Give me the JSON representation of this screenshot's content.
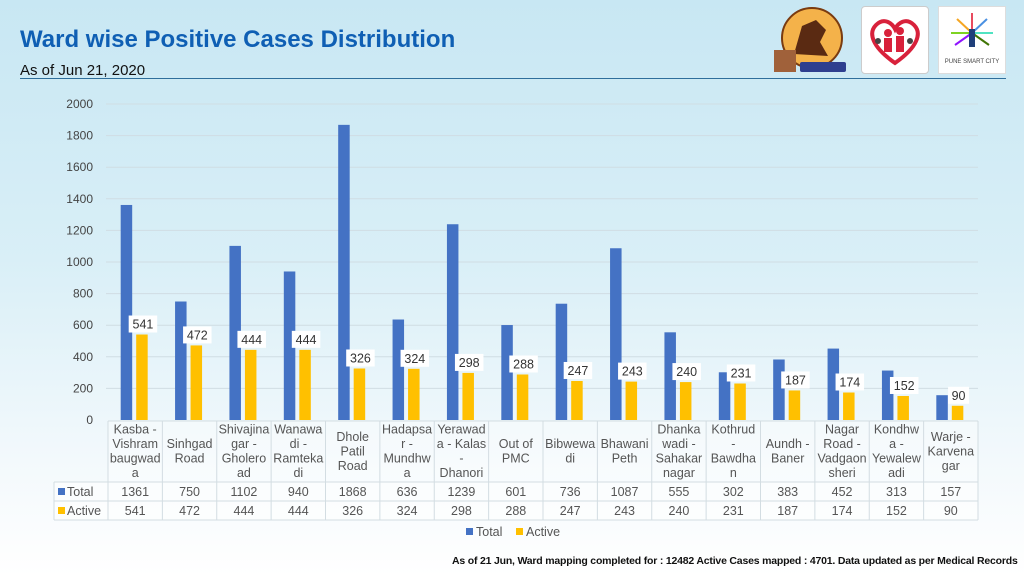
{
  "header": {
    "title": "Ward wise Positive Cases Distribution",
    "subtitle": "As of Jun 21, 2020"
  },
  "logos": [
    {
      "name": "pune-municipal-corporation-logo"
    },
    {
      "name": "health-department-logo"
    },
    {
      "name": "pune-smart-city-logo",
      "text": "PUNE SMART CITY"
    }
  ],
  "colors": {
    "total": "#4472c4",
    "active": "#ffc000",
    "title": "#0f5fb4"
  },
  "chart_data": {
    "type": "bar",
    "title": "Ward wise Positive Cases Distribution",
    "xlabel": "",
    "ylabel": "",
    "ylim": [
      0,
      2000
    ],
    "yticks": [
      0,
      200,
      400,
      600,
      800,
      1000,
      1200,
      1400,
      1600,
      1800,
      2000
    ],
    "grid": true,
    "legend": "bottom",
    "data_table": true,
    "categories": [
      "Kasba - Vishram baugwada",
      "Sinhgad Road",
      "Shivajinagar - Gholeroad",
      "Wanawadi - Ramtekadi",
      "Dhole Patil Road",
      "Hadapsar - Mundhwa",
      "Yerawada - Kalas - Dhanori",
      "Out of PMC",
      "Bibwewadi",
      "Bhawani Peth",
      "Dhankawadi - Sahakarnagar",
      "Kothrud - Bawdhan",
      "Aundh - Baner",
      "Nagar Road - Vadgaonsheri",
      "Kondhwa - Yewalewadi",
      "Warje - Karvenagar"
    ],
    "category_label_lines": [
      [
        "Kasba -",
        "Vishram",
        "baugwad",
        "a"
      ],
      [
        "Sinhgad",
        "Road"
      ],
      [
        "Shivajina",
        "gar -",
        "Gholero",
        "ad"
      ],
      [
        "Wanawa",
        "di -",
        "Ramteka",
        "di"
      ],
      [
        "Dhole",
        "Patil",
        "Road"
      ],
      [
        "Hadapsa",
        "r -",
        "Mundhw",
        "a"
      ],
      [
        "Yerawad",
        "a - Kalas",
        "-",
        "Dhanori"
      ],
      [
        "Out of",
        "PMC"
      ],
      [
        "Bibwewa",
        "di"
      ],
      [
        "Bhawani",
        "Peth"
      ],
      [
        "Dhanka",
        "wadi -",
        "Sahakar",
        "nagar"
      ],
      [
        "Kothrud",
        "-",
        "Bawdha",
        "n"
      ],
      [
        "Aundh -",
        "Baner"
      ],
      [
        "Nagar",
        "Road -",
        "Vadgaon",
        "sheri"
      ],
      [
        "Kondhw",
        "a -",
        "Yewalew",
        "adi"
      ],
      [
        "Warje -",
        "Karvena",
        "gar"
      ]
    ],
    "series": [
      {
        "name": "Total",
        "values": [
          1361,
          750,
          1102,
          940,
          1868,
          636,
          1239,
          601,
          736,
          1087,
          555,
          302,
          383,
          452,
          313,
          157
        ],
        "data_labels": false
      },
      {
        "name": "Active",
        "values": [
          541,
          472,
          444,
          444,
          326,
          324,
          298,
          288,
          247,
          243,
          240,
          231,
          187,
          174,
          152,
          90
        ],
        "data_labels": true
      }
    ]
  },
  "footnote": "As of 21 Jun, Ward mapping completed for : 12482 Active Cases mapped : 4701. Data updated as per Medical Records"
}
